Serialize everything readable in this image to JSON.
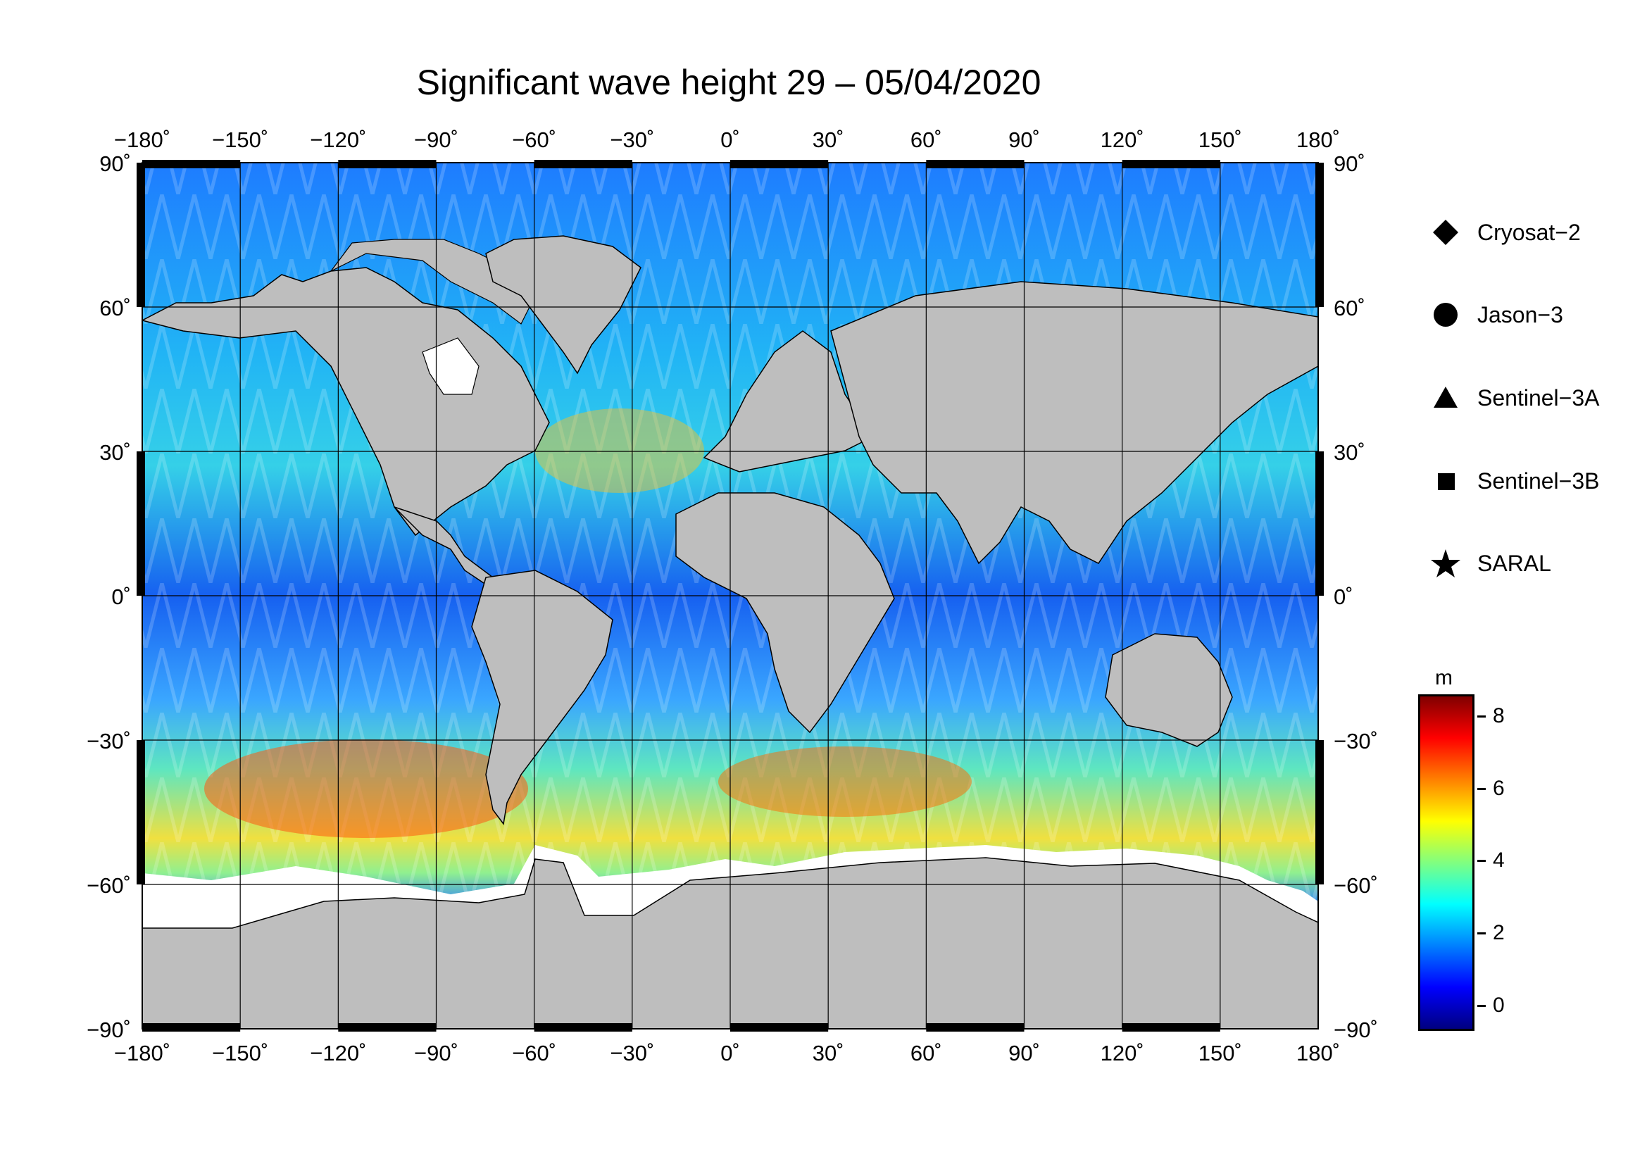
{
  "title": "Significant wave height 29 – 05/04/2020",
  "map": {
    "projection": "equirectangular",
    "lon_range": [
      -180,
      180
    ],
    "lat_range": [
      -90,
      90
    ],
    "lon_ticks": [
      "−180˚",
      "−150˚",
      "−120˚",
      "−90˚",
      "−60˚",
      "−30˚",
      "0˚",
      "30˚",
      "60˚",
      "90˚",
      "120˚",
      "150˚",
      "180˚"
    ],
    "lat_ticks": [
      "90˚",
      "60˚",
      "30˚",
      "0˚",
      "−30˚",
      "−60˚",
      "−90˚"
    ],
    "grid": "30 degree graticule",
    "land_color": "#bebebe",
    "ice_color": "#ffffff",
    "variable": "significant wave height",
    "field_description": "satellite altimeter along-track swaths; highest values (6–8 m) in Southern Ocean 40–60°S, North Atlantic and NW Pacific moderate (3–6 m), tropics and enclosed seas low (0–2 m)"
  },
  "legend": {
    "items": [
      {
        "label": "Cryosat−2",
        "marker": "diamond"
      },
      {
        "label": "Jason−3",
        "marker": "circle"
      },
      {
        "label": "Sentinel−3A",
        "marker": "triangle"
      },
      {
        "label": "Sentinel−3B",
        "marker": "square"
      },
      {
        "label": "SARAL",
        "marker": "star"
      }
    ]
  },
  "colorbar": {
    "unit": "m",
    "range": [
      -0.7,
      8.6
    ],
    "ticks": [
      "0",
      "2",
      "4",
      "6",
      "8"
    ],
    "tick_values": [
      0,
      2,
      4,
      6,
      8
    ],
    "colors": [
      "#000080",
      "#0000ff",
      "#0080ff",
      "#00ffff",
      "#80ff80",
      "#ffff00",
      "#ff8000",
      "#ff0000",
      "#800000"
    ]
  }
}
